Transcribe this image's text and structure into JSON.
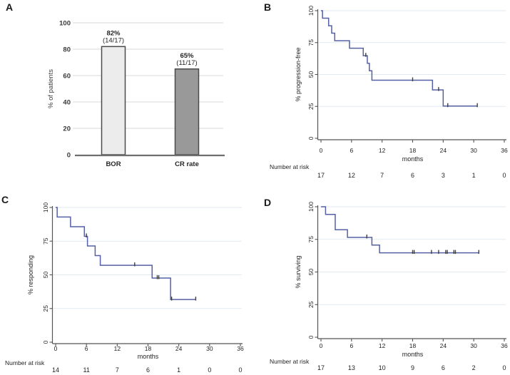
{
  "figure": {
    "background": "#ffffff"
  },
  "chart_data": [
    {
      "letter": "A",
      "type": "bar",
      "title": "",
      "xlabel": "",
      "ylabel": "% of patients",
      "categories": [
        "BOR",
        "CR rate"
      ],
      "values": [
        82,
        65
      ],
      "bar_labels": [
        [
          "82%",
          "(14/17)"
        ],
        [
          "65%",
          "(11/17)"
        ]
      ],
      "yticks": [
        0,
        20,
        40,
        60,
        80,
        100
      ],
      "ylim": [
        0,
        100
      ],
      "grid": true,
      "bar_fills": [
        "#ececec",
        "#999999"
      ],
      "bar_border": "#4b4b4b",
      "grid_color": "#d9d9d9",
      "axis_color": "#6e6e6e",
      "text_color": "#3a3a3a"
    },
    {
      "letter": "B",
      "type": "km",
      "ylabel": "% progression-free",
      "xlabel": "months",
      "xticks": [
        0,
        6,
        12,
        18,
        24,
        30,
        36
      ],
      "yticks": [
        0,
        25,
        50,
        75,
        100
      ],
      "xlim": [
        0,
        36
      ],
      "ylim": [
        0,
        100
      ],
      "grid": true,
      "steps": [
        [
          0,
          100
        ],
        [
          0.3,
          94.1
        ],
        [
          1.5,
          88.2
        ],
        [
          2.1,
          82.4
        ],
        [
          2.7,
          76.5
        ],
        [
          5.6,
          70.6
        ],
        [
          8.3,
          64.7
        ],
        [
          9.1,
          58.8
        ],
        [
          9.5,
          52.9
        ],
        [
          10,
          45.5
        ],
        [
          21.9,
          37.9
        ],
        [
          24,
          25.3
        ]
      ],
      "end_x": 30.7,
      "censors": [
        [
          8.8,
          64.7
        ],
        [
          18,
          45.5
        ],
        [
          23.1,
          37.9
        ],
        [
          24.9,
          25.3
        ],
        [
          30.7,
          25.3
        ]
      ],
      "risk_label": "Number at risk",
      "risk": [
        17,
        12,
        7,
        6,
        3,
        1,
        0
      ],
      "line_color": "#5560a5",
      "grid_color": "#e2eaf3",
      "axis_color": "#555555",
      "censor_color": "#3f3f3f",
      "text_color": "#1f1f1f"
    },
    {
      "letter": "C",
      "type": "km",
      "ylabel": "% responding",
      "xlabel": "months",
      "xticks": [
        0,
        6,
        12,
        18,
        24,
        30,
        36
      ],
      "yticks": [
        0,
        25,
        50,
        75,
        100
      ],
      "xlim": [
        0,
        36
      ],
      "ylim": [
        0,
        100
      ],
      "grid": true,
      "steps": [
        [
          0,
          100
        ],
        [
          0.3,
          92.9
        ],
        [
          2.9,
          85.7
        ],
        [
          5.6,
          78.6
        ],
        [
          6.2,
          71.4
        ],
        [
          7.7,
          64.3
        ],
        [
          8.7,
          57.1
        ],
        [
          18.8,
          47.6
        ],
        [
          22.4,
          31.7
        ]
      ],
      "end_x": 27.3,
      "censors": [
        [
          6,
          78.6
        ],
        [
          15.4,
          57.1
        ],
        [
          19.8,
          47.6
        ],
        [
          20.1,
          47.6
        ],
        [
          22.6,
          31.7
        ],
        [
          27.3,
          31.7
        ]
      ],
      "risk_label": "Number at risk",
      "risk": [
        14,
        11,
        7,
        6,
        1,
        0,
        0
      ],
      "line_color": "#5560a5",
      "grid_color": "#e2eaf3",
      "axis_color": "#555555",
      "censor_color": "#3f3f3f",
      "text_color": "#1f1f1f"
    },
    {
      "letter": "D",
      "type": "km",
      "ylabel": "% surviving",
      "xlabel": "months",
      "xticks": [
        0,
        6,
        12,
        18,
        24,
        30,
        36
      ],
      "yticks": [
        0,
        25,
        50,
        75,
        100
      ],
      "xlim": [
        0,
        36
      ],
      "ylim": [
        0,
        100
      ],
      "grid": true,
      "steps": [
        [
          0,
          100
        ],
        [
          0.9,
          94.1
        ],
        [
          2.8,
          82.4
        ],
        [
          5.2,
          76.5
        ],
        [
          10,
          70.6
        ],
        [
          11.5,
          64.7
        ]
      ],
      "end_x": 31.0,
      "censors": [
        [
          9,
          76.5
        ],
        [
          18,
          64.7
        ],
        [
          18.3,
          64.7
        ],
        [
          21.7,
          64.7
        ],
        [
          23.1,
          64.7
        ],
        [
          24.5,
          64.7
        ],
        [
          24.8,
          64.7
        ],
        [
          26.1,
          64.7
        ],
        [
          26.4,
          64.7
        ],
        [
          31,
          64.7
        ]
      ],
      "risk_label": "Number at risk",
      "risk": [
        17,
        13,
        10,
        9,
        6,
        2,
        0
      ],
      "line_color": "#5560a5",
      "grid_color": "#e2eaf3",
      "axis_color": "#555555",
      "censor_color": "#3f3f3f",
      "text_color": "#1f1f1f"
    }
  ]
}
